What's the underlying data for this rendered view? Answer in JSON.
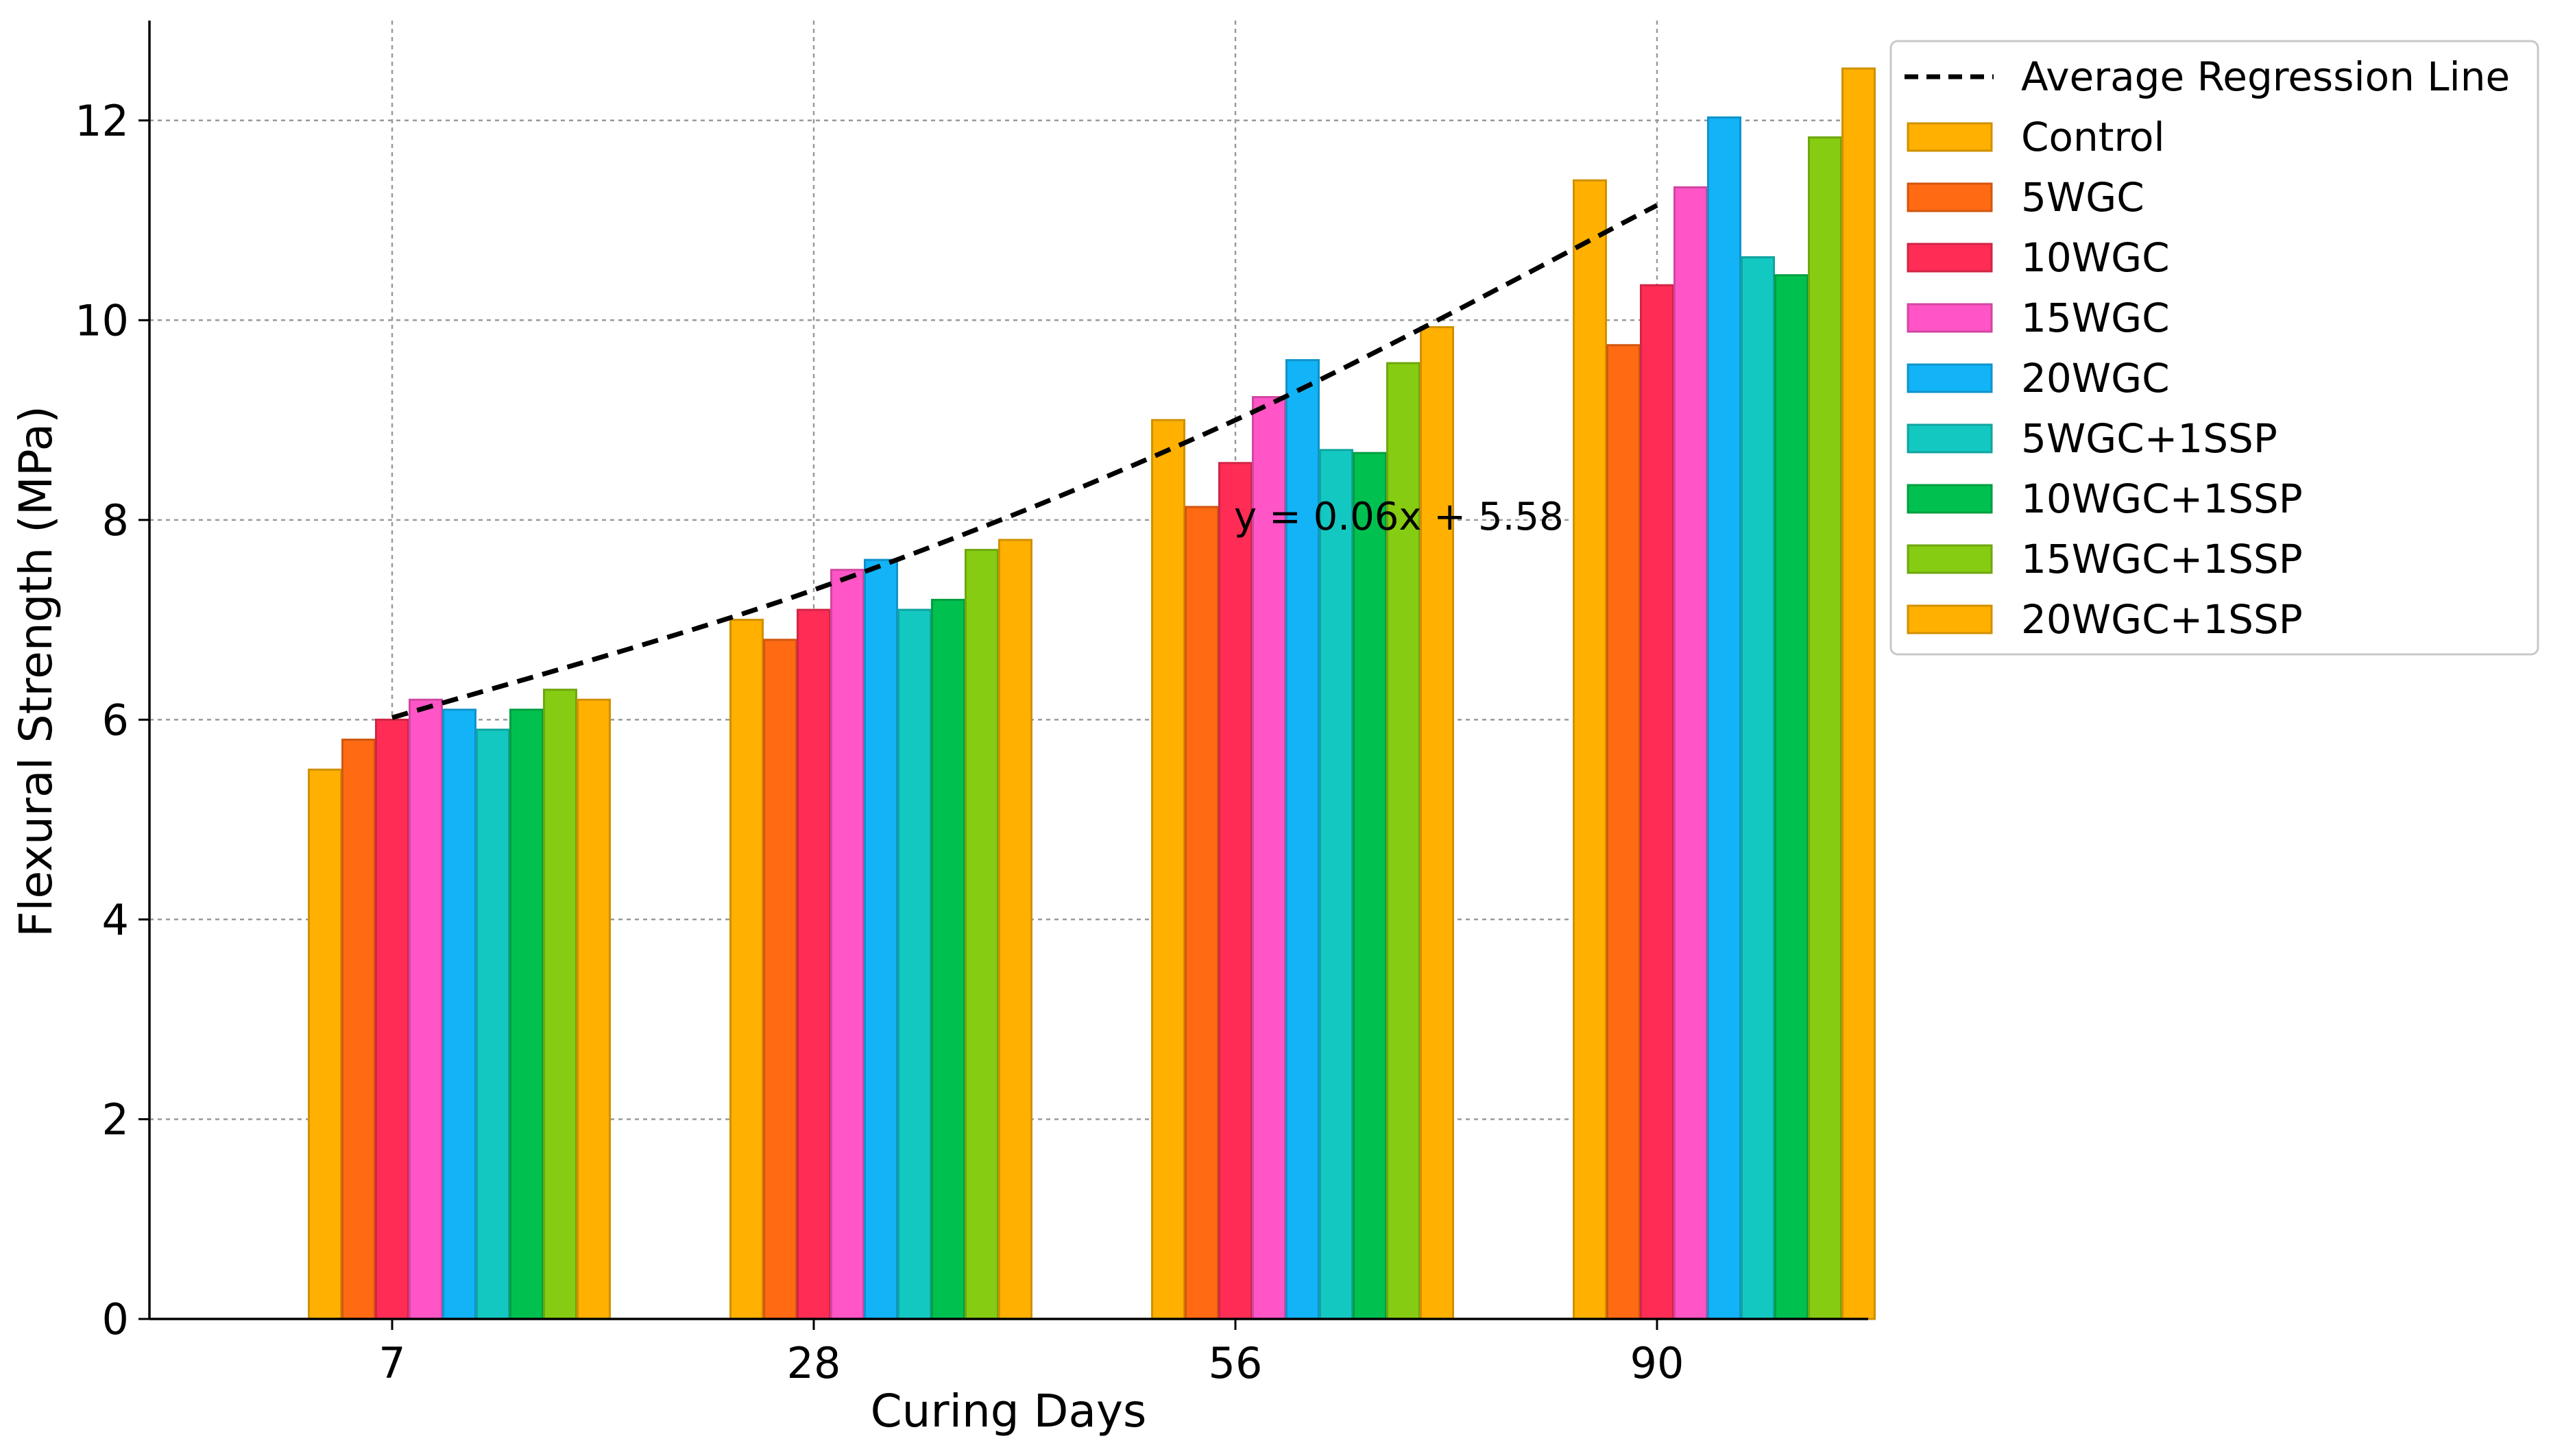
{
  "chart_data": {
    "type": "bar",
    "title": "",
    "xlabel": "Curing Days",
    "ylabel": "Flexural Strength (MPa)",
    "ylim": [
      0,
      13
    ],
    "grid": true,
    "legend_position": "outside-top-right",
    "categories": [
      "7",
      "28",
      "56",
      "90"
    ],
    "yticks": [
      "0",
      "2",
      "4",
      "6",
      "8",
      "10",
      "12"
    ],
    "series": [
      {
        "name": "Control",
        "color": "#FFB000",
        "values": [
          5.5,
          7.0,
          9.0,
          11.4
        ]
      },
      {
        "name": "5WGC",
        "color": "#FF6A13",
        "values": [
          5.8,
          6.8,
          8.13,
          9.75
        ]
      },
      {
        "name": "10WGC",
        "color": "#FF2D55",
        "values": [
          6.0,
          7.1,
          8.57,
          10.35
        ]
      },
      {
        "name": "15WGC",
        "color": "#FF55C6",
        "values": [
          6.2,
          7.5,
          9.23,
          11.33
        ]
      },
      {
        "name": "20WGC",
        "color": "#12B3F7",
        "values": [
          6.1,
          7.6,
          9.6,
          12.03
        ]
      },
      {
        "name": "5WGC+1SSP",
        "color": "#14C8C2",
        "values": [
          5.9,
          7.1,
          8.7,
          10.63
        ]
      },
      {
        "name": "10WGC+1SSP",
        "color": "#00C14F",
        "values": [
          6.1,
          7.2,
          8.67,
          10.45
        ]
      },
      {
        "name": "15WGC+1SSP",
        "color": "#86CC12",
        "values": [
          6.3,
          7.7,
          9.57,
          11.83
        ]
      },
      {
        "name": "20WGC+1SSP",
        "color": "#FFB000",
        "values": [
          6.2,
          7.8,
          9.93,
          12.52
        ]
      }
    ],
    "regression": {
      "name": "Average Regression Line",
      "style": "dashed",
      "color": "#000000",
      "label": "y = 0.06x + 5.58",
      "points": [
        {
          "x": "7",
          "y": 6.02
        },
        {
          "x": "28",
          "y": 7.3
        },
        {
          "x": "56",
          "y": 9.0
        },
        {
          "x": "90",
          "y": 11.15
        }
      ]
    }
  }
}
